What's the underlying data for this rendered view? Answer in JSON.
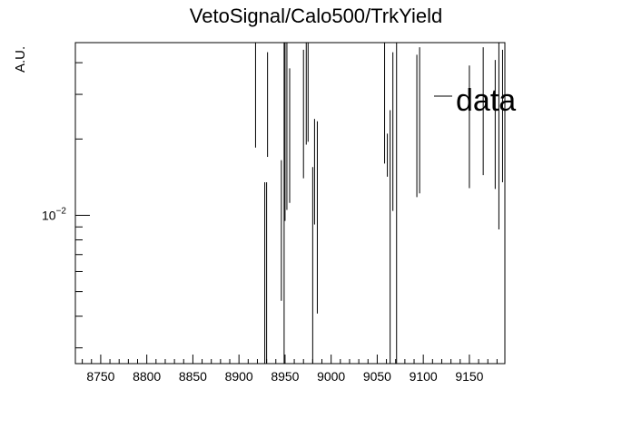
{
  "chart_data": {
    "type": "scatter",
    "title": "VetoSignal/Calo500/TrkYield",
    "xlabel": "",
    "ylabel": "A.U.",
    "y_scale": "log",
    "xlim": [
      8722,
      8990
    ],
    "ylim": [
      0.0026,
      0.048
    ],
    "x_ticks": [
      "8750",
      "8800",
      "8850",
      "8900",
      "8950",
      "9000",
      "9050",
      "9100",
      "9150"
    ],
    "x_tick_values": [
      8750,
      8800,
      8850,
      8900,
      8950,
      9000,
      9050,
      9100,
      9150
    ],
    "y_tick_label": {
      "base": "10",
      "exponent": "−2"
    },
    "y_tick_value": 0.01,
    "grid": false,
    "legend": {
      "position": "top-right",
      "entries": [
        "data"
      ]
    },
    "series": [
      {
        "name": "data",
        "style": "error-bars-only",
        "color": "#000000",
        "points": [
          {
            "x": 8918,
            "low": 0.0185,
            "high": 0.048
          },
          {
            "x": 8928,
            "low": 0.0026,
            "high": 0.0135
          },
          {
            "x": 8930,
            "low": 0.0026,
            "high": 0.0135
          },
          {
            "x": 8931,
            "low": 0.017,
            "high": 0.044
          },
          {
            "x": 8946,
            "low": 0.0046,
            "high": 0.0165
          },
          {
            "x": 8949,
            "low": 0.0026,
            "high": 0.048
          },
          {
            "x": 8950,
            "low": 0.0095,
            "high": 0.048
          },
          {
            "x": 8952,
            "low": 0.0105,
            "high": 0.048
          },
          {
            "x": 8955,
            "low": 0.0112,
            "high": 0.038
          },
          {
            "x": 8970,
            "low": 0.014,
            "high": 0.045
          },
          {
            "x": 8973,
            "low": 0.019,
            "high": 0.048
          },
          {
            "x": 8975,
            "low": 0.0195,
            "high": 0.048
          },
          {
            "x": 8980,
            "low": 0.0026,
            "high": 0.0155
          },
          {
            "x": 8982,
            "low": 0.0092,
            "high": 0.024
          },
          {
            "x": 8985,
            "low": 0.0041,
            "high": 0.0235
          },
          {
            "x": 9058,
            "low": 0.016,
            "high": 0.048
          },
          {
            "x": 9061,
            "low": 0.0142,
            "high": 0.021
          },
          {
            "x": 9064,
            "low": 0.0026,
            "high": 0.026
          },
          {
            "x": 9067,
            "low": 0.0104,
            "high": 0.044
          },
          {
            "x": 9071,
            "low": 0.0026,
            "high": 0.048
          },
          {
            "x": 9093,
            "low": 0.0118,
            "high": 0.043
          },
          {
            "x": 9096,
            "low": 0.0122,
            "high": 0.046
          },
          {
            "x": 9150,
            "low": 0.0128,
            "high": 0.039
          },
          {
            "x": 9165,
            "low": 0.0144,
            "high": 0.046
          },
          {
            "x": 9178,
            "low": 0.0127,
            "high": 0.041
          },
          {
            "x": 9182,
            "low": 0.0088,
            "high": 0.048
          },
          {
            "x": 9186,
            "low": 0.0135,
            "high": 0.045
          }
        ]
      }
    ]
  }
}
